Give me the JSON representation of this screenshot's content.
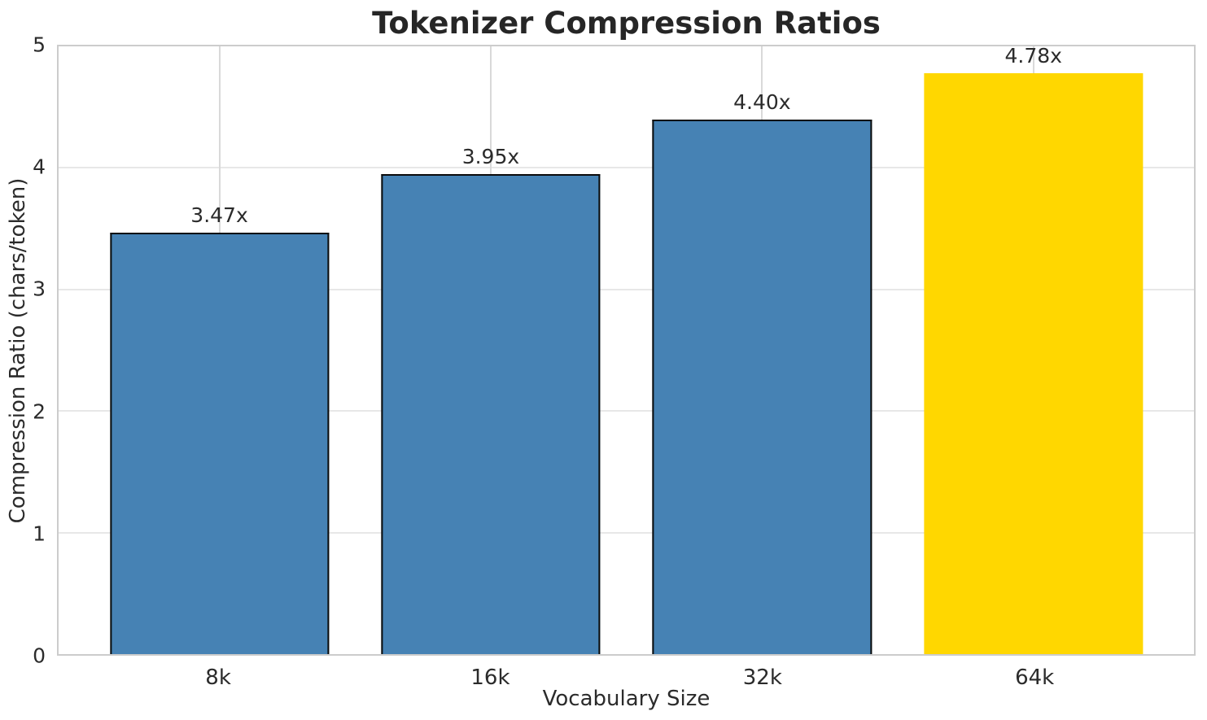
{
  "chart_data": {
    "type": "bar",
    "title": "Tokenizer Compression Ratios",
    "xlabel": "Vocabulary Size",
    "ylabel": "Compression Ratio (chars/token)",
    "categories": [
      "8k",
      "16k",
      "32k",
      "64k"
    ],
    "values": [
      3.47,
      3.95,
      4.4,
      4.78
    ],
    "bar_labels": [
      "3.47x",
      "3.95x",
      "4.40x",
      "4.78x"
    ],
    "ylim": [
      0,
      5
    ],
    "yticks": [
      "0",
      "1",
      "2",
      "3",
      "4",
      "5"
    ],
    "grid": true,
    "legend_position": "none",
    "highlight_index": 3,
    "colors": {
      "bar": "#4682B4",
      "highlight": "#FFD700",
      "bar_edge": "#0a0a0a",
      "grid_h": "#e7e7e7",
      "grid_v": "#d9d9d9",
      "spine": "#cccccc",
      "text": "#262626"
    }
  }
}
